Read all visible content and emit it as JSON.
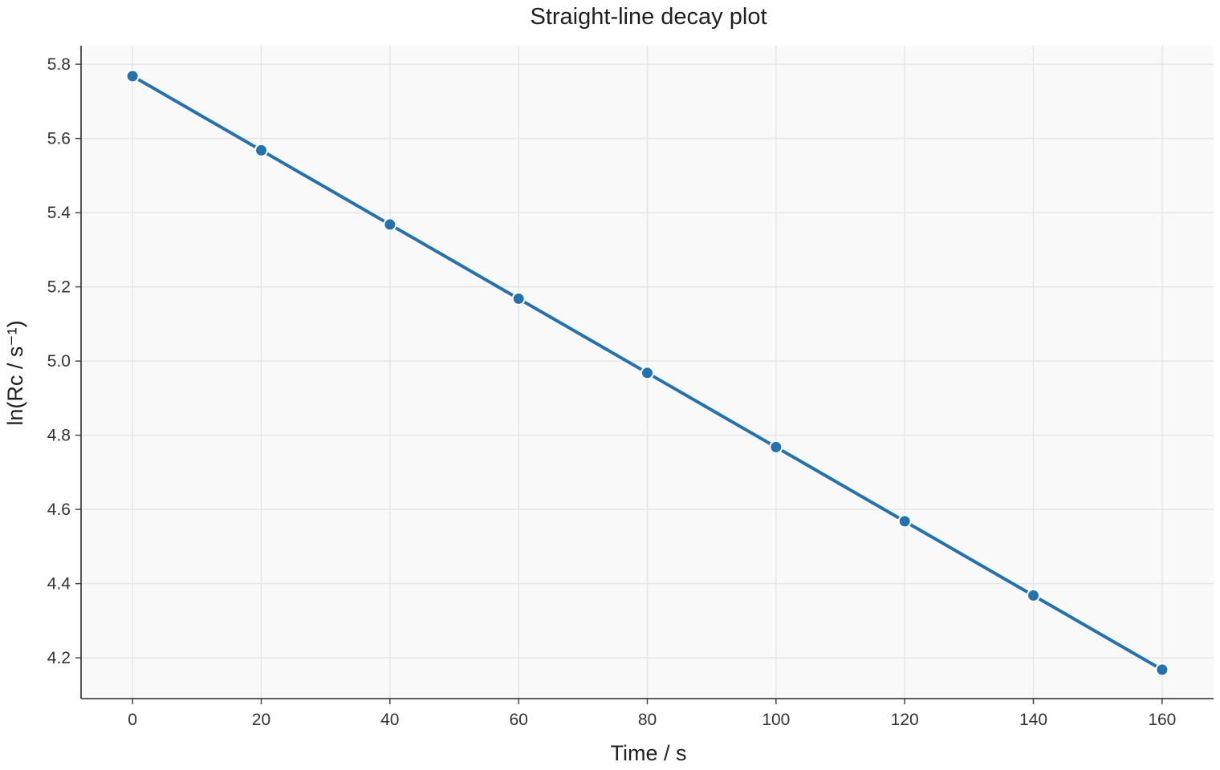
{
  "chart_data": {
    "type": "line",
    "title": "Straight-line decay plot",
    "xlabel": "Time / s",
    "ylabel": "ln(Rc / s⁻¹)",
    "x": [
      0,
      20,
      40,
      60,
      80,
      100,
      120,
      140,
      160
    ],
    "series": [
      {
        "values": [
          5.768,
          5.568,
          5.368,
          5.168,
          4.968,
          4.768,
          4.568,
          4.368,
          4.168
        ],
        "color": "#2271b1",
        "marker": "circle"
      }
    ],
    "xlim": [
      -8,
      168
    ],
    "ylim": [
      4.09,
      5.85
    ],
    "xticks": [
      0,
      20,
      40,
      60,
      80,
      100,
      120,
      140,
      160
    ],
    "xtick_labels": [
      "0",
      "20",
      "40",
      "60",
      "80",
      "100",
      "120",
      "140",
      "160"
    ],
    "yticks": [
      4.2,
      4.4,
      4.6,
      4.8,
      5.0,
      5.2,
      5.4,
      5.6,
      5.8
    ],
    "ytick_labels": [
      "4.2",
      "4.4",
      "4.6",
      "4.8",
      "5.0",
      "5.2",
      "5.4",
      "5.6",
      "5.8"
    ],
    "grid": true,
    "legend": "none",
    "colors": {
      "background": "#f9f9f9",
      "grid": "#e6e6e6",
      "axis": "#444444",
      "marker_edge": "#ffffff"
    }
  }
}
